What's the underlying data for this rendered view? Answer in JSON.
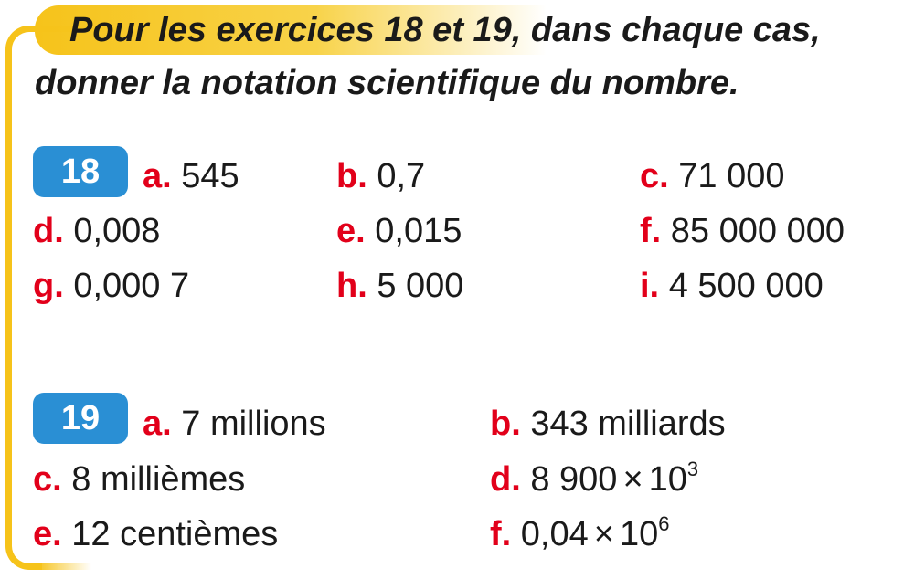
{
  "instruction": {
    "line1_a": "Pour les exercices ",
    "line1_n1": "18",
    "line1_b": " et ",
    "line1_n2": "19",
    "line1_c": ", dans chaque cas,",
    "line2": "donner la notation scientifique du nombre."
  },
  "exercise18": {
    "number": "18",
    "items": [
      {
        "letter": "a.",
        "value": "545"
      },
      {
        "letter": "b.",
        "value": "0,7"
      },
      {
        "letter": "c.",
        "value": "71 000"
      },
      {
        "letter": "d.",
        "value": "0,008"
      },
      {
        "letter": "e.",
        "value": "0,015"
      },
      {
        "letter": "f.",
        "value": "85 000 000"
      },
      {
        "letter": "g.",
        "value": "0,000 7"
      },
      {
        "letter": "h.",
        "value": "5 000"
      },
      {
        "letter": "i.",
        "value": "4 500 000"
      }
    ]
  },
  "exercise19": {
    "number": "19",
    "items": [
      {
        "letter": "a.",
        "value": "7 millions"
      },
      {
        "letter": "b.",
        "value": "343 milliards"
      },
      {
        "letter": "c.",
        "value": "8 millièmes"
      },
      {
        "letter": "d.",
        "mantissa": "8 900",
        "times": "×",
        "base": "10",
        "exponent": "3"
      },
      {
        "letter": "e.",
        "value": "12 centièmes"
      },
      {
        "letter": "f.",
        "mantissa": "0,04",
        "times": "×",
        "base": "10",
        "exponent": "6"
      }
    ]
  },
  "colors": {
    "frame": "#f6c31a",
    "badge": "#2a8fd4",
    "letter": "#e2001a",
    "text": "#1a1a1a"
  }
}
